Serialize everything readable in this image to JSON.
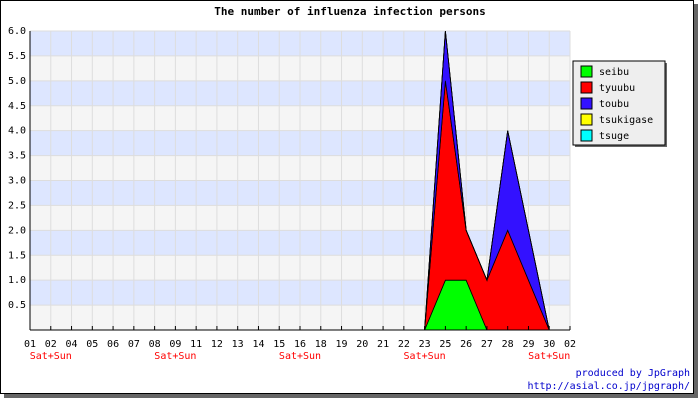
{
  "chart_data": {
    "type": "stacked_area",
    "title": "The number of influenza infection persons",
    "categories": [
      "01",
      "02",
      "04",
      "05",
      "06",
      "07",
      "08",
      "09",
      "11",
      "12",
      "13",
      "14",
      "15",
      "16",
      "18",
      "19",
      "20",
      "21",
      "22",
      "23",
      "25",
      "26",
      "27",
      "28",
      "29",
      "30",
      "02"
    ],
    "x_sublabels": [
      null,
      "Sat+Sun",
      null,
      null,
      null,
      null,
      null,
      "Sat+Sun",
      null,
      null,
      null,
      null,
      null,
      "Sat+Sun",
      null,
      null,
      null,
      null,
      null,
      "Sat+Sun",
      null,
      null,
      null,
      null,
      null,
      "Sat+Sun",
      null
    ],
    "sublabel_color": "#ff0000",
    "series": [
      {
        "name": "seibu",
        "color": "#00ff00",
        "values": [
          0,
          0,
          0,
          0,
          0,
          0,
          0,
          0,
          0,
          0,
          0,
          0,
          0,
          0,
          0,
          0,
          0,
          0,
          0,
          0,
          1,
          1,
          0,
          0,
          0,
          0,
          0
        ]
      },
      {
        "name": "tyuubu",
        "color": "#ff0000",
        "values": [
          0,
          0,
          0,
          0,
          0,
          0,
          0,
          0,
          0,
          0,
          0,
          0,
          0,
          0,
          0,
          0,
          0,
          0,
          0,
          0,
          4,
          1,
          1,
          2,
          1,
          0,
          0
        ]
      },
      {
        "name": "toubu",
        "color": "#3311ff",
        "values": [
          0,
          0,
          0,
          0,
          0,
          0,
          0,
          0,
          0,
          0,
          0,
          0,
          0,
          0,
          0,
          0,
          0,
          0,
          0,
          0,
          1,
          0,
          0,
          2,
          1,
          0,
          0
        ]
      },
      {
        "name": "tsukigase",
        "color": "#ffff00",
        "values": [
          0,
          0,
          0,
          0,
          0,
          0,
          0,
          0,
          0,
          0,
          0,
          0,
          0,
          0,
          0,
          0,
          0,
          0,
          0,
          0,
          0,
          0,
          0,
          0,
          0,
          0,
          0
        ]
      },
      {
        "name": "tsuge",
        "color": "#00ffff",
        "values": [
          0,
          0,
          0,
          0,
          0,
          0,
          0,
          0,
          0,
          0,
          0,
          0,
          0,
          0,
          0,
          0,
          0,
          0,
          0,
          0,
          0,
          0,
          0,
          0,
          0,
          0,
          0
        ]
      }
    ],
    "ylim": [
      0,
      6
    ],
    "yticks": [
      0.5,
      {
        "value": 1,
        "label": "1.0"
      },
      1.5,
      {
        "value": 2,
        "label": "2.0"
      },
      2.5,
      {
        "value": 3,
        "label": "3.0"
      },
      3.5,
      {
        "value": 4,
        "label": "4.0"
      },
      4.5,
      {
        "value": 5,
        "label": "5.0"
      },
      5.5,
      {
        "value": 6,
        "label": "6.0"
      }
    ],
    "grid": true,
    "band_colors": [
      "#f5f5f5",
      "#dde6ff"
    ],
    "legend": "right",
    "footer": [
      "produced by JpGraph",
      "http://asial.co.jp/jpgraph/"
    ],
    "footer_color": "#0000cc"
  }
}
